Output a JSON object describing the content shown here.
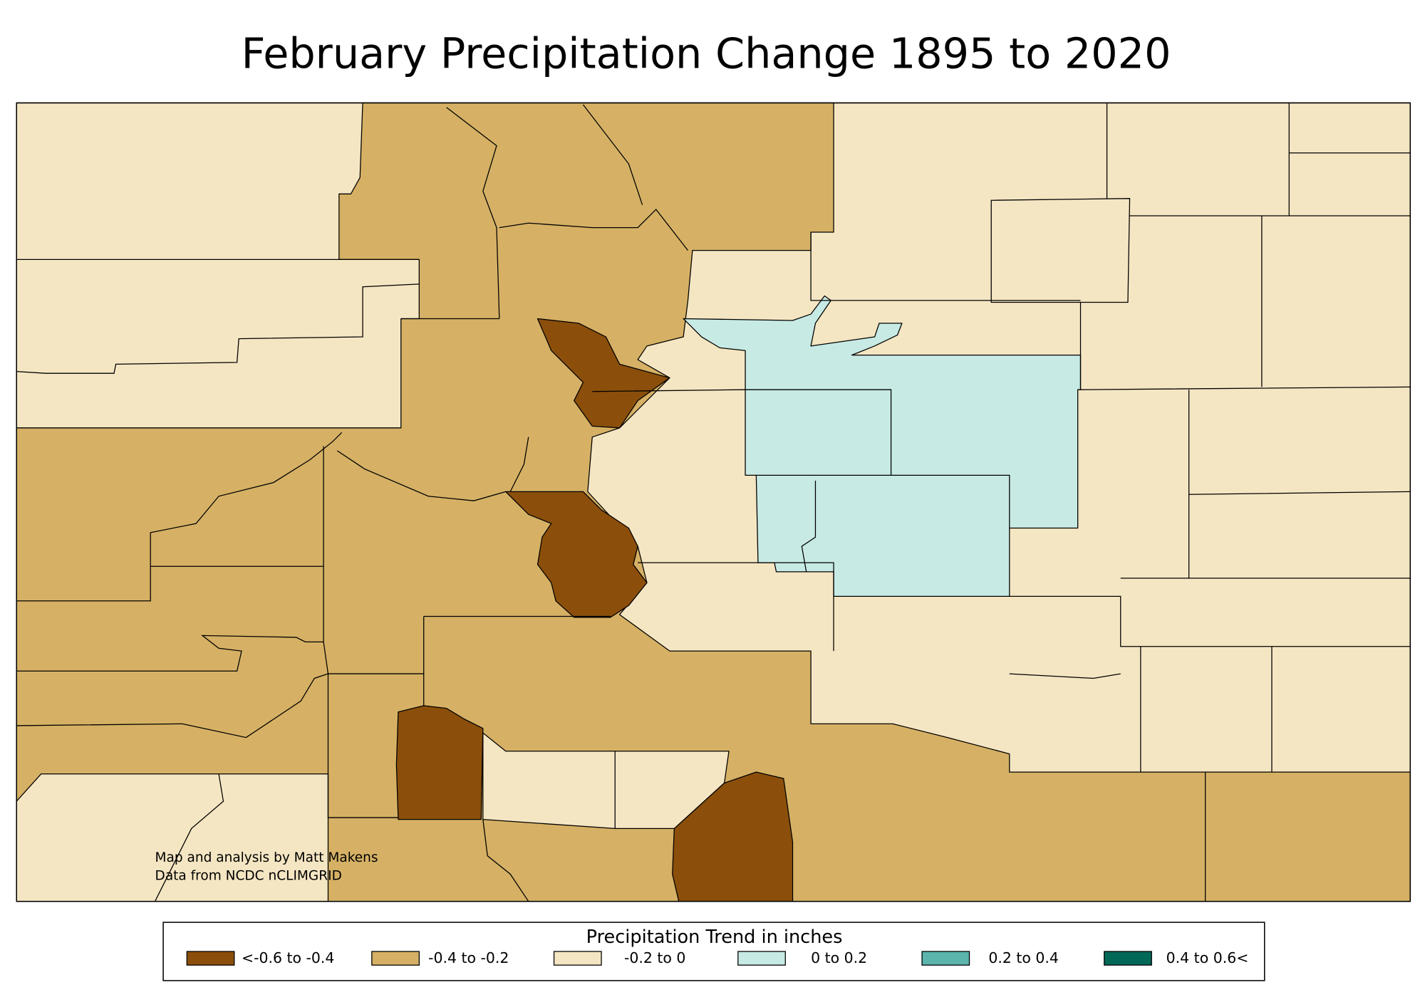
{
  "title": "February Precipitation Change 1895 to 2020",
  "credits": [
    "Map and analysis by Matt Makens",
    "Data from NCDC nCLIMGRID"
  ],
  "legend": {
    "title": "Precipitation Trend in inches",
    "items": [
      {
        "label": "<-0.6 to -0.4",
        "color": "#8b4f0b"
      },
      {
        "label": "-0.4 to -0.2",
        "color": "#d6b165"
      },
      {
        "label": "-0.2 to 0",
        "color": "#f5e6c3"
      },
      {
        "label": "0 to 0.2",
        "color": "#c7eae4"
      },
      {
        "label": "0.2 to 0.4",
        "color": "#5bb5ac"
      },
      {
        "label": "0.4 to 0.6<",
        "color": "#016858"
      }
    ]
  }
}
